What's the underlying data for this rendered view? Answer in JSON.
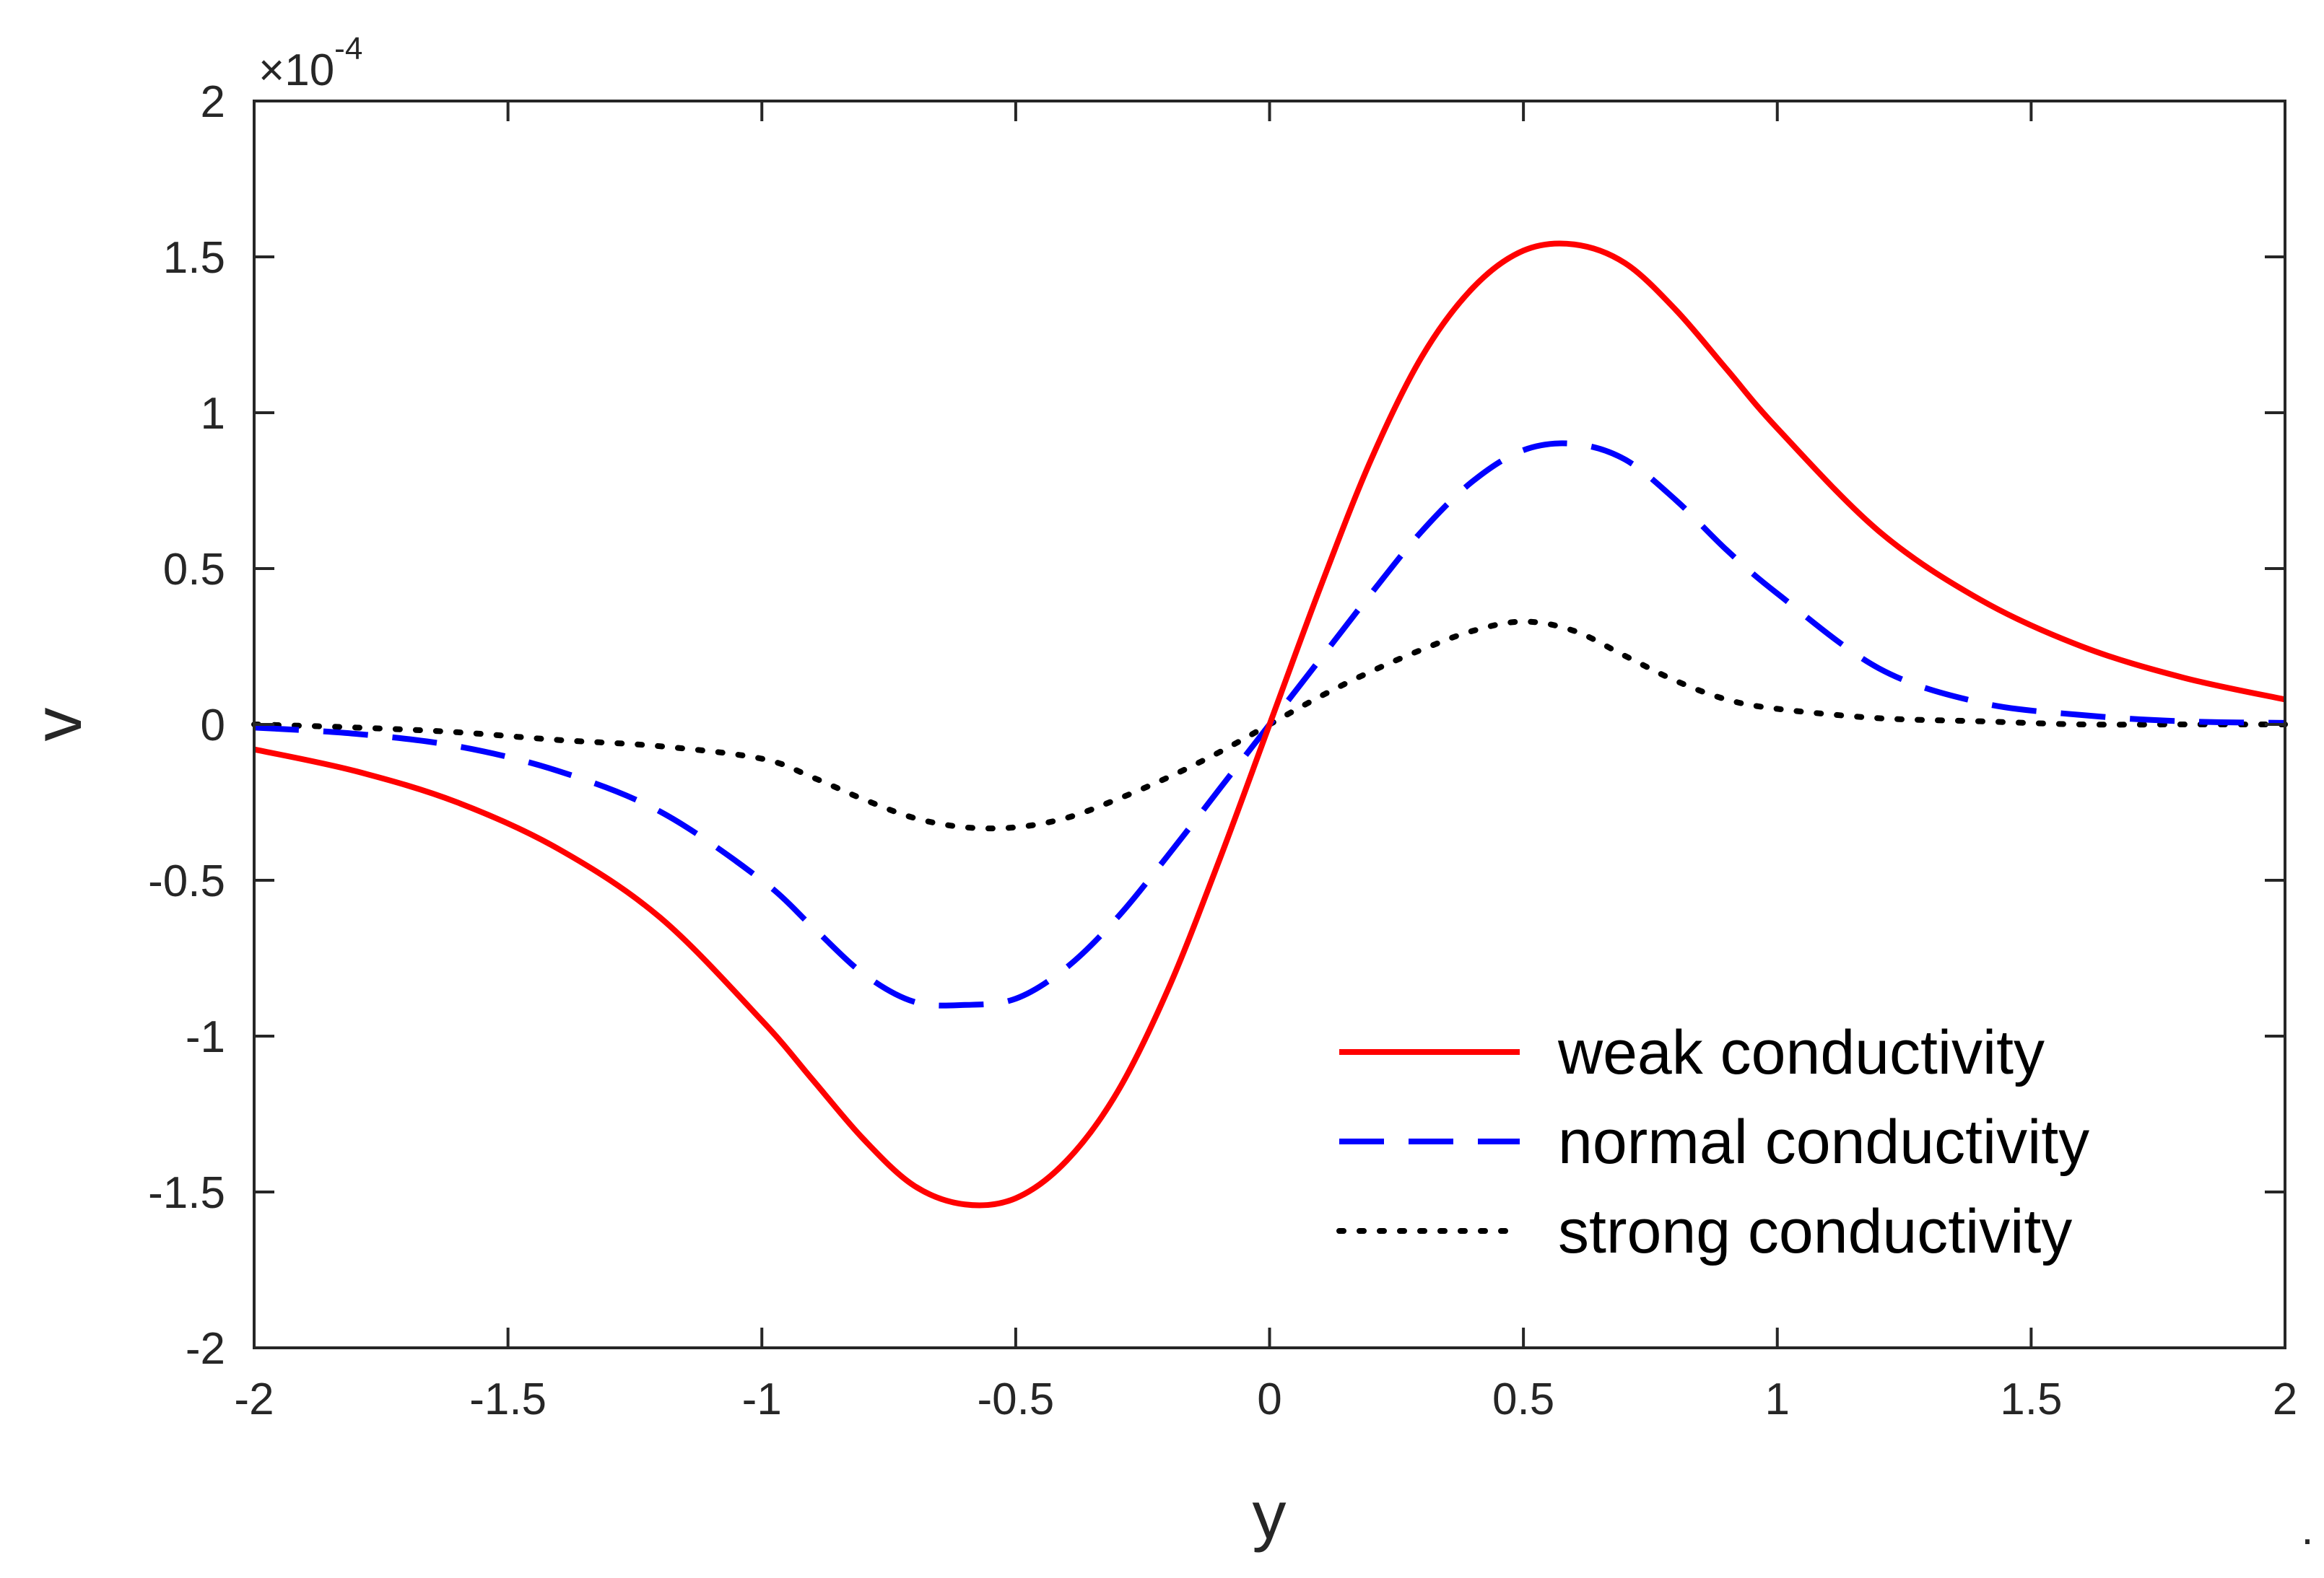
{
  "chart_data": {
    "type": "line",
    "title": "",
    "xlabel": "y",
    "ylabel": "v",
    "xlim": [
      -2,
      2
    ],
    "ylim": [
      -2,
      2
    ],
    "y_scale_multiplier": {
      "base": "×10",
      "power": "-4"
    },
    "x_ticks": [
      -2,
      -1.5,
      -1,
      -0.5,
      0,
      0.5,
      1,
      1.5,
      2
    ],
    "x_tick_labels": [
      "-2",
      "-1.5",
      "-1",
      "-0.5",
      "0",
      "0.5",
      "1",
      "1.5",
      "2"
    ],
    "y_ticks": [
      -2,
      -1.5,
      -1,
      -0.5,
      0,
      0.5,
      1,
      1.5,
      2
    ],
    "y_tick_labels": [
      "-2",
      "-1.5",
      "-1",
      "-0.5",
      "0",
      "0.5",
      "1",
      "1.5",
      "2"
    ],
    "grid": false,
    "legend_position": "bottom-right",
    "trailing_mark": ".",
    "x": [
      -2,
      -1.8,
      -1.6,
      -1.4,
      -1.2,
      -1.0,
      -0.9,
      -0.8,
      -0.7,
      -0.6,
      -0.5,
      -0.4,
      -0.3,
      -0.2,
      -0.1,
      0,
      0.1,
      0.2,
      0.3,
      0.4,
      0.5,
      0.6,
      0.7,
      0.8,
      0.9,
      1.0,
      1.2,
      1.4,
      1.6,
      1.8,
      2.0
    ],
    "series": [
      {
        "name": "weak conductivity",
        "color": "#ff0000",
        "style": "solid",
        "values": [
          -0.08,
          -0.15,
          -0.25,
          -0.4,
          -0.62,
          -0.95,
          -1.14,
          -1.33,
          -1.48,
          -1.54,
          -1.52,
          -1.4,
          -1.18,
          -0.85,
          -0.44,
          0.0,
          0.44,
          0.85,
          1.18,
          1.4,
          1.52,
          1.54,
          1.48,
          1.33,
          1.14,
          0.95,
          0.62,
          0.4,
          0.25,
          0.15,
          0.08
        ]
      },
      {
        "name": "normal conductivity",
        "color": "#0000ff",
        "style": "dashed",
        "values": [
          -0.01,
          -0.03,
          -0.07,
          -0.15,
          -0.28,
          -0.5,
          -0.65,
          -0.8,
          -0.89,
          -0.9,
          -0.88,
          -0.78,
          -0.62,
          -0.42,
          -0.21,
          0.0,
          0.21,
          0.42,
          0.62,
          0.78,
          0.88,
          0.9,
          0.85,
          0.72,
          0.56,
          0.42,
          0.18,
          0.07,
          0.03,
          0.01,
          0.005
        ]
      },
      {
        "name": "strong conductivity",
        "color": "#000000",
        "style": "dotted",
        "values": [
          0.0,
          -0.01,
          -0.025,
          -0.05,
          -0.07,
          -0.11,
          -0.17,
          -0.24,
          -0.3,
          -0.33,
          -0.33,
          -0.3,
          -0.24,
          -0.17,
          -0.09,
          0.0,
          0.09,
          0.17,
          0.24,
          0.3,
          0.33,
          0.3,
          0.22,
          0.14,
          0.08,
          0.05,
          0.02,
          0.01,
          0.0,
          0.0,
          0.0
        ]
      }
    ]
  }
}
